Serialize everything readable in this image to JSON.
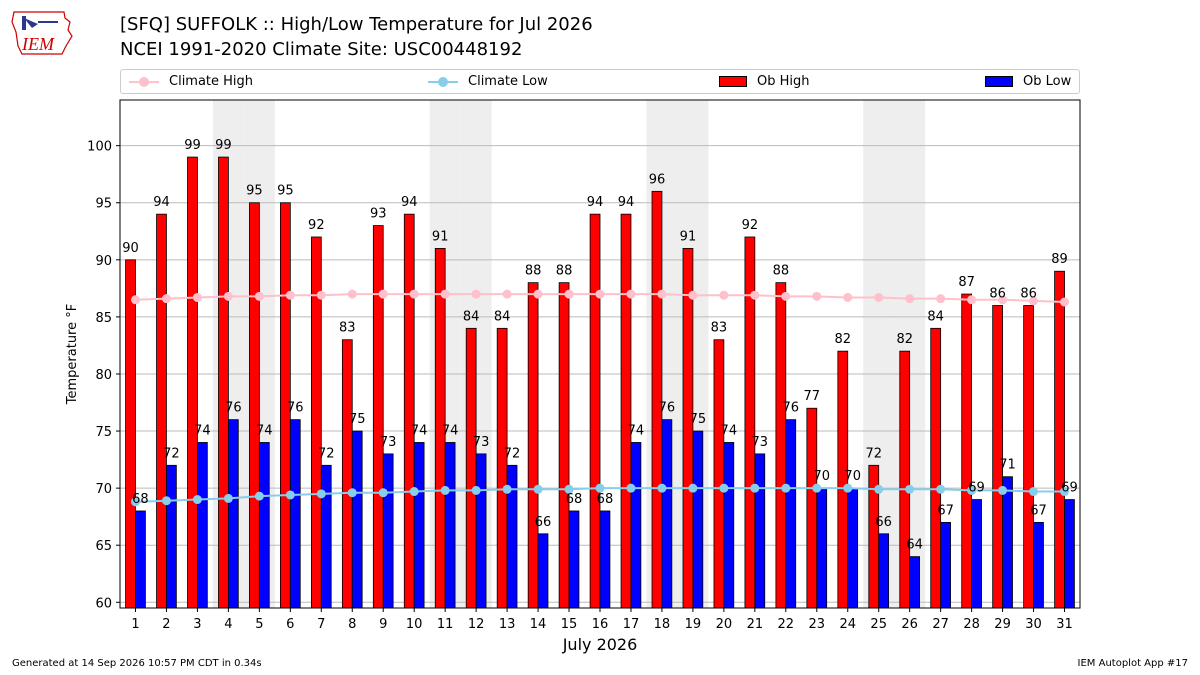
{
  "header": {
    "logo_text": "IEM",
    "title_line1": "[SFQ] SUFFOLK :: High/Low Temperature for Jul 2026",
    "title_line2": "NCEI 1991-2020 Climate Site: USC00448192"
  },
  "legend": {
    "climate_high": "Climate High",
    "climate_low": "Climate Low",
    "ob_high": "Ob High",
    "ob_low": "Ob Low"
  },
  "colors": {
    "climate_high": "#ffc0cb",
    "climate_low": "#87ceeb",
    "ob_high": "#ff0000",
    "ob_low": "#0000ff",
    "weekend_band": "#eeeeee",
    "grid": "#bbbbbb"
  },
  "footer": {
    "generated": "Generated at 14 Sep 2026 10:57 PM CDT in 0.34s",
    "app": "IEM Autoplot App #17"
  },
  "chart_data": {
    "type": "bar",
    "xlabel": "July 2026",
    "ylabel": "Temperature °F",
    "ylim": [
      59.5,
      104
    ],
    "yticks": [
      60,
      65,
      70,
      75,
      80,
      85,
      90,
      95,
      100
    ],
    "grid": true,
    "legend_position": "top",
    "categories": [
      1,
      2,
      3,
      4,
      5,
      6,
      7,
      8,
      9,
      10,
      11,
      12,
      13,
      14,
      15,
      16,
      17,
      18,
      19,
      20,
      21,
      22,
      23,
      24,
      25,
      26,
      27,
      28,
      29,
      30,
      31
    ],
    "shaded_days": [
      4,
      5,
      11,
      12,
      18,
      19,
      25,
      26
    ],
    "series": [
      {
        "name": "Ob High",
        "kind": "bar",
        "values": [
          90,
          94,
          99,
          99,
          95,
          95,
          92,
          83,
          93,
          94,
          91,
          84,
          84,
          88,
          88,
          94,
          94,
          96,
          91,
          83,
          92,
          88,
          77,
          82,
          72,
          82,
          84,
          87,
          86,
          86,
          89
        ]
      },
      {
        "name": "Ob Low",
        "kind": "bar",
        "values": [
          68,
          72,
          74,
          76,
          74,
          76,
          72,
          75,
          73,
          74,
          74,
          73,
          72,
          66,
          68,
          68,
          74,
          76,
          75,
          74,
          73,
          76,
          70,
          70,
          66,
          64,
          67,
          69,
          71,
          67,
          69
        ]
      },
      {
        "name": "Climate High",
        "kind": "line",
        "values": [
          86.5,
          86.6,
          86.7,
          86.8,
          86.8,
          86.9,
          86.9,
          87.0,
          87.0,
          87.0,
          87.0,
          87.0,
          87.0,
          87.0,
          87.0,
          87.0,
          87.0,
          87.0,
          86.9,
          86.9,
          86.9,
          86.8,
          86.8,
          86.7,
          86.7,
          86.6,
          86.6,
          86.5,
          86.5,
          86.4,
          86.3
        ]
      },
      {
        "name": "Climate Low",
        "kind": "line",
        "values": [
          68.8,
          68.9,
          69.0,
          69.1,
          69.3,
          69.4,
          69.5,
          69.6,
          69.6,
          69.7,
          69.8,
          69.8,
          69.9,
          69.9,
          69.9,
          70.0,
          70.0,
          70.0,
          70.0,
          70.0,
          70.0,
          70.0,
          70.0,
          70.0,
          69.9,
          69.9,
          69.9,
          69.8,
          69.8,
          69.7,
          69.7
        ]
      }
    ]
  }
}
